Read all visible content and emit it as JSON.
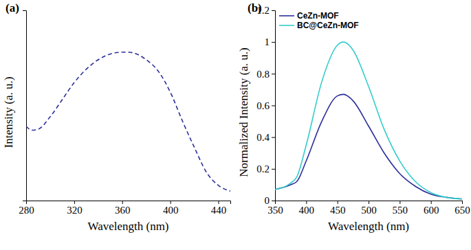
{
  "chart_data": [
    {
      "type": "line",
      "title": "(a)",
      "x_label": "Wavelength (nm)",
      "y_label": "Intensity (a. u.)",
      "x": [
        280,
        285,
        290,
        300,
        310,
        320,
        330,
        340,
        350,
        360,
        365,
        370,
        380,
        390,
        400,
        410,
        420,
        430,
        440,
        450
      ],
      "values": [
        0.39,
        0.37,
        0.375,
        0.44,
        0.53,
        0.62,
        0.69,
        0.74,
        0.77,
        0.78,
        0.78,
        0.775,
        0.74,
        0.68,
        0.57,
        0.42,
        0.28,
        0.15,
        0.08,
        0.05
      ],
      "color": "#2b2d9b",
      "line_style": "dashed",
      "xlim": [
        280,
        450
      ],
      "xticks": [
        280,
        320,
        360,
        400,
        440
      ],
      "ylim": [
        0,
        1
      ],
      "tick_labels": "x"
    },
    {
      "type": "line",
      "title": "(b)",
      "x_label": "Wavelength (nm)",
      "y_label": "Normalized Intensity (a. u.)",
      "x": [
        350,
        375,
        385,
        400,
        425,
        450,
        460,
        475,
        500,
        525,
        550,
        575,
        600,
        625,
        650
      ],
      "series": [
        {
          "name": "CeZn-MOF",
          "color": "#2b2d9b",
          "values": [
            0.07,
            0.1,
            0.12,
            0.25,
            0.5,
            0.66,
            0.67,
            0.63,
            0.47,
            0.3,
            0.17,
            0.09,
            0.04,
            0.02,
            0.01
          ]
        },
        {
          "name": "BC@CeZn-MOF",
          "color": "#33cccc",
          "values": [
            0.07,
            0.11,
            0.15,
            0.35,
            0.75,
            0.98,
            1.0,
            0.95,
            0.72,
            0.45,
            0.25,
            0.12,
            0.05,
            0.02,
            0.01
          ]
        }
      ],
      "xlim": [
        350,
        650
      ],
      "xticks": [
        350,
        400,
        450,
        500,
        550,
        600,
        650
      ],
      "ylim": [
        0,
        1.2
      ],
      "yticks": [
        0,
        0.2,
        0.4,
        0.6,
        0.8,
        1,
        1.2
      ],
      "legend": "upper-left"
    }
  ]
}
